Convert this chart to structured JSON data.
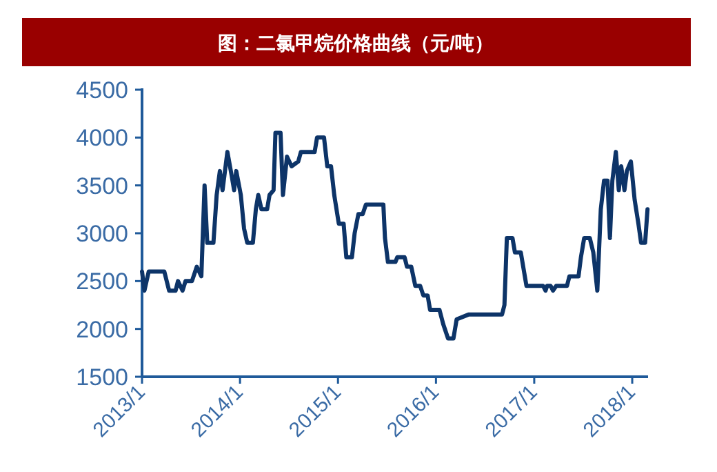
{
  "chart_data": {
    "type": "line",
    "title": "图：二氯甲烷价格曲线（元/吨）",
    "x": [
      "2013-01-01",
      "2013-01-10",
      "2013-01-26",
      "2013-03-25",
      "2013-04-12",
      "2013-05-06",
      "2013-05-15",
      "2013-06-01",
      "2013-06-12",
      "2013-07-06",
      "2013-07-24",
      "2013-08-10",
      "2013-08-22",
      "2013-09-01",
      "2013-09-24",
      "2013-10-06",
      "2013-10-18",
      "2013-10-28",
      "2013-11-15",
      "2013-12-01",
      "2013-12-10",
      "2013-12-18",
      "2014-01-04",
      "2014-01-16",
      "2014-01-28",
      "2014-02-18",
      "2014-03-01",
      "2014-03-10",
      "2014-03-22",
      "2014-04-12",
      "2014-04-21",
      "2014-05-06",
      "2014-05-13",
      "2014-06-01",
      "2014-06-10",
      "2014-06-25",
      "2014-07-12",
      "2014-08-06",
      "2014-08-16",
      "2014-10-06",
      "2014-10-15",
      "2014-11-10",
      "2014-11-22",
      "2014-12-06",
      "2014-12-18",
      "2015-01-04",
      "2015-01-22",
      "2015-02-01",
      "2015-02-22",
      "2015-03-04",
      "2015-03-18",
      "2015-04-03",
      "2015-04-15",
      "2015-06-19",
      "2015-06-25",
      "2015-07-06",
      "2015-08-03",
      "2015-08-10",
      "2015-09-06",
      "2015-09-15",
      "2015-10-01",
      "2015-10-16",
      "2015-11-03",
      "2015-11-15",
      "2015-12-01",
      "2015-12-10",
      "2016-01-14",
      "2016-01-28",
      "2016-02-15",
      "2016-03-06",
      "2016-03-18",
      "2016-05-01",
      "2016-09-03",
      "2016-09-12",
      "2016-09-21",
      "2016-10-12",
      "2016-10-21",
      "2016-11-12",
      "2016-11-24",
      "2016-12-03",
      "2017-02-03",
      "2017-02-12",
      "2017-02-18",
      "2017-03-03",
      "2017-03-12",
      "2017-03-24",
      "2017-05-03",
      "2017-05-12",
      "2017-06-15",
      "2017-06-24",
      "2017-07-06",
      "2017-07-27",
      "2017-08-09",
      "2017-08-24",
      "2017-09-06",
      "2017-09-18",
      "2017-10-01",
      "2017-10-10",
      "2017-10-19",
      "2017-11-01",
      "2017-11-12",
      "2017-11-21",
      "2017-12-03",
      "2017-12-12",
      "2017-12-27",
      "2018-01-10",
      "2018-01-24",
      "2018-02-03",
      "2018-02-18",
      "2018-02-27"
    ],
    "series": [
      {
        "color": "#0d3468",
        "values": [
          2600,
          2400,
          2600,
          2600,
          2400,
          2400,
          2500,
          2400,
          2500,
          2500,
          2650,
          2550,
          3500,
          2900,
          2900,
          3400,
          3650,
          3450,
          3850,
          3600,
          3450,
          3650,
          3400,
          3050,
          2900,
          2900,
          3250,
          3400,
          3250,
          3250,
          3400,
          3450,
          4050,
          4050,
          3400,
          3800,
          3700,
          3750,
          3850,
          3850,
          4000,
          4000,
          3700,
          3700,
          3400,
          3100,
          3100,
          2750,
          2750,
          3000,
          3200,
          3200,
          3300,
          3300,
          2950,
          2700,
          2700,
          2750,
          2750,
          2650,
          2650,
          2450,
          2450,
          2350,
          2350,
          2200,
          2200,
          2050,
          1900,
          1900,
          2100,
          2150,
          2150,
          2250,
          2950,
          2950,
          2800,
          2800,
          2600,
          2450,
          2450,
          2400,
          2450,
          2450,
          2400,
          2450,
          2450,
          2550,
          2550,
          2750,
          2950,
          2950,
          2800,
          2400,
          3250,
          3550,
          3550,
          2950,
          3550,
          3850,
          3450,
          3700,
          3450,
          3650,
          3750,
          3350,
          3100,
          2900,
          2900,
          3250
        ]
      }
    ],
    "xlim": [
      "2013-01-01",
      "2018-03-01"
    ],
    "xticks": [
      {
        "value": "2013-01-01",
        "label": "2013/1"
      },
      {
        "value": "2014-01-01",
        "label": "2014/1"
      },
      {
        "value": "2015-01-01",
        "label": "2015/1"
      },
      {
        "value": "2016-01-01",
        "label": "2016/1"
      },
      {
        "value": "2017-01-01",
        "label": "2017/1"
      },
      {
        "value": "2018-01-01",
        "label": "2018/1"
      }
    ],
    "ylim": [
      1500,
      4500
    ],
    "yticks": [
      1500,
      2000,
      2500,
      3000,
      3500,
      4000,
      4500
    ],
    "grid": false,
    "marker": "none",
    "line_style": "solid"
  }
}
